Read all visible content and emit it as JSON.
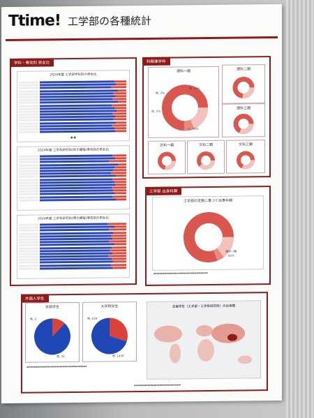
{
  "poster": {
    "logo": "Ttime!",
    "title": "工学部の各種統計"
  },
  "panel_gender": {
    "heading": "学科・専攻別 男女比",
    "chart1_title": "2024年度 工学部学科別の男女比",
    "chart2_title": "2024年度 工学系研究科(修士課程)専攻別の男女比",
    "chart3_title": "2024年度 工学系研究科(博士課程)専攻別の男女比"
  },
  "panel_entry": {
    "heading": "科類進学枠",
    "donut_main": "理科一類",
    "donut_r2": "理科二類",
    "donut_r3": "理科三類",
    "donut_b1": "文科一類",
    "donut_b2": "文科二類",
    "donut_b3": "文科三類",
    "main_pct_labels": [
      "男, 3%",
      "他, 5%",
      "理, 10%"
    ],
    "main_big_label": "ロ, 76%"
  },
  "panel_origin": {
    "heading": "工学部 出身科類",
    "chart_title": "工学部の定数に基づく出身科類",
    "label_main": "理科一類",
    "label_main_pct": "82%"
  },
  "panel_intl": {
    "heading": "外国人学生",
    "pie1_title": "学部学生",
    "pie2_title": "大学院学生",
    "pie1_labels": [
      "男, 2",
      "男, 32"
    ],
    "pie2_labels": [
      "男, 628",
      "男, 1436"
    ],
    "map_title": "全留学生（工学部・工学系研究科）の出身国"
  },
  "chart_data": [
    {
      "type": "bar",
      "title": "2024年度 工学部学科別の男女比",
      "categories": [
        "",
        "",
        "",
        "",
        "",
        "",
        "",
        "",
        "",
        "",
        "",
        "",
        "",
        "",
        "",
        "",
        "",
        ""
      ],
      "series": [
        {
          "values": [
            0.86,
            0.88,
            0.82,
            0.9,
            0.85,
            0.87,
            0.84,
            0.9,
            0.83,
            0.86,
            0.89,
            0.84,
            0.87,
            0.85,
            0.88,
            0.83,
            0.86,
            0.87
          ]
        },
        {
          "values": [
            0.14,
            0.12,
            0.18,
            0.1,
            0.15,
            0.13,
            0.16,
            0.1,
            0.17,
            0.14,
            0.11,
            0.16,
            0.13,
            0.15,
            0.12,
            0.17,
            0.14,
            0.13
          ]
        }
      ]
    },
    {
      "type": "bar",
      "title": "2024年度 工学系研究科(修士課程)専攻別の男女比",
      "categories": [
        "",
        "",
        "",
        "",
        "",
        "",
        "",
        "",
        "",
        "",
        "",
        "",
        "",
        "",
        "",
        ""
      ],
      "series": [
        {
          "values": [
            0.84,
            0.87,
            0.8,
            0.9,
            0.86,
            0.85,
            0.82,
            0.88,
            0.84,
            0.86,
            0.87,
            0.83,
            0.85,
            0.86,
            0.84,
            0.88
          ]
        },
        {
          "values": [
            0.16,
            0.13,
            0.2,
            0.1,
            0.14,
            0.15,
            0.18,
            0.12,
            0.16,
            0.14,
            0.13,
            0.17,
            0.15,
            0.14,
            0.16,
            0.12
          ]
        }
      ]
    },
    {
      "type": "bar",
      "title": "2024年度 工学系研究科(博士課程)専攻別の男女比",
      "categories": [
        "",
        "",
        "",
        "",
        "",
        "",
        "",
        "",
        "",
        "",
        "",
        "",
        "",
        "",
        "",
        ""
      ],
      "series": [
        {
          "values": [
            0.78,
            0.86,
            0.8,
            0.85,
            0.82,
            0.84,
            0.8,
            0.86,
            0.83,
            0.81,
            0.84,
            0.79,
            0.83,
            0.85,
            0.82,
            0.84
          ]
        },
        {
          "values": [
            0.22,
            0.14,
            0.2,
            0.15,
            0.18,
            0.16,
            0.2,
            0.14,
            0.17,
            0.19,
            0.16,
            0.21,
            0.17,
            0.15,
            0.18,
            0.16
          ]
        }
      ]
    },
    {
      "type": "pie",
      "title": "学部学生",
      "values": [
        0.12,
        0.88
      ]
    },
    {
      "type": "pie",
      "title": "大学院学生",
      "values": [
        0.3,
        0.7
      ]
    }
  ]
}
